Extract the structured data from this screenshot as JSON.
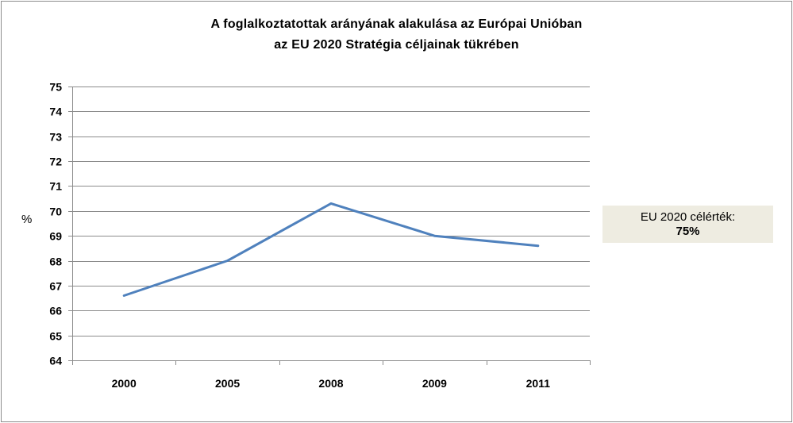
{
  "chart_data": {
    "type": "line",
    "title": "A foglalkoztatottak arányának alakulása az Európai Unióban",
    "subtitle": "az EU 2020 Stratégia céljainak tükrében",
    "ylabel": "%",
    "xlabel": "",
    "ylim": [
      64,
      75
    ],
    "yticks": [
      64,
      65,
      66,
      67,
      68,
      69,
      70,
      71,
      72,
      73,
      74,
      75
    ],
    "categories": [
      "2000",
      "2005",
      "2008",
      "2009",
      "2011"
    ],
    "series": [
      {
        "values": [
          66.6,
          68.0,
          70.3,
          69.0,
          68.6
        ],
        "color": "#4f81bd"
      }
    ],
    "grid": true,
    "annotation": {
      "line1": "EU 2020 célérték:",
      "line2": "75%"
    }
  }
}
